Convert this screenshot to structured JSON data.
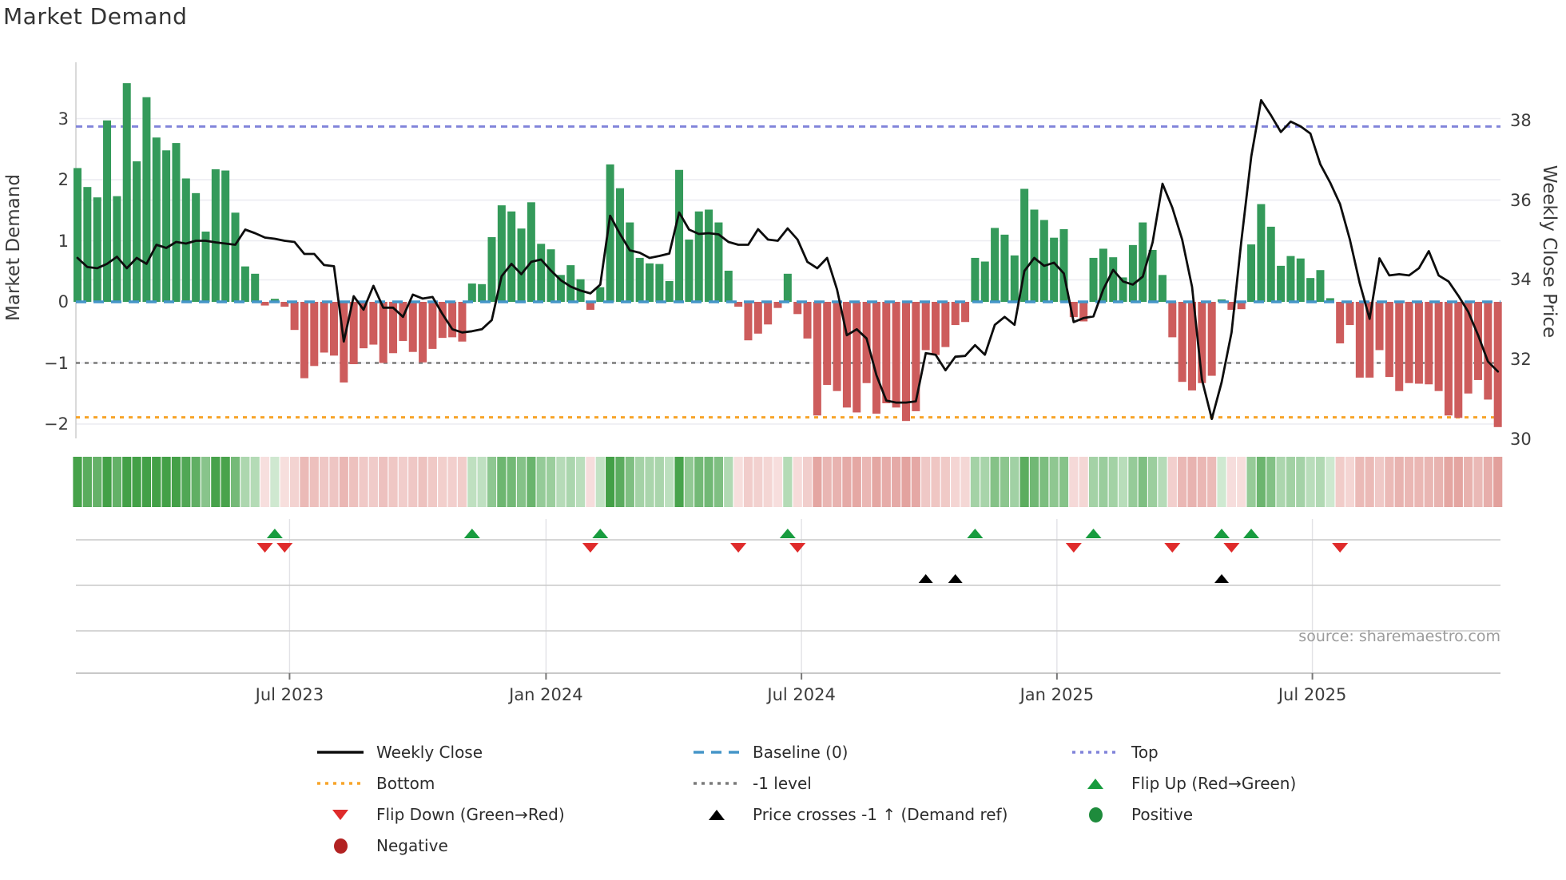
{
  "title": "Market Demand",
  "source": "source: sharemaestro.com",
  "axes": {
    "left": {
      "label": "Market Demand",
      "ticks": [
        {
          "v": 3,
          "label": "3"
        },
        {
          "v": 2,
          "label": "2"
        },
        {
          "v": 1,
          "label": "1"
        },
        {
          "v": 0,
          "label": "0"
        },
        {
          "v": -1,
          "label": "−1"
        },
        {
          "v": -2,
          "label": "−2"
        }
      ]
    },
    "right": {
      "label": "Weekly Close Price",
      "ticks": [
        {
          "v": 38,
          "label": "38"
        },
        {
          "v": 36,
          "label": "36"
        },
        {
          "v": 34,
          "label": "34"
        },
        {
          "v": 32,
          "label": "32"
        },
        {
          "v": 30,
          "label": "30"
        }
      ]
    },
    "x": {
      "ticks": [
        {
          "label": "Jul 2023",
          "week": 21.5
        },
        {
          "label": "Jan 2024",
          "week": 47.5
        },
        {
          "label": "Jul 2024",
          "week": 73.4
        },
        {
          "label": "Jan 2025",
          "week": 99.3
        },
        {
          "label": "Jul 2025",
          "week": 125.2
        }
      ]
    }
  },
  "colors": {
    "bar_positive": "#349a5a",
    "bar_negative": "#cd5c5c",
    "price_line": "#0d0d0d",
    "baseline": "#4595c8",
    "top_line": "#8184da",
    "bottom_line": "#f7a429",
    "minus_one_line": "#7a7a7a",
    "flip_up": "#189c3f",
    "flip_down": "#df2b2b",
    "price_cross": "#000000",
    "positive_dot": "#1e8b3c",
    "negative_dot": "#b22222",
    "grid": "#ececf1",
    "spine": "#d0d0d0",
    "panel_line": "#c9c9c9",
    "panel_grid": "#e2e2e6",
    "axis_line": "#b5b5b5"
  },
  "chart_data": {
    "type": "combo",
    "description": "Weekly Market Demand bars (left axis) with Weekly Close price line (right axis), heat strip and flip/cross marker rows",
    "start_date": "2023-01-30",
    "frequency": "weekly",
    "demand_ylim": [
      -2.35,
      3.95
    ],
    "price_ylim": [
      29.9,
      38.9
    ],
    "top_level": 2.87,
    "bottom_level": -1.89,
    "minus_one_level": -1,
    "baseline_level": 0,
    "demand": [
      2.19,
      1.88,
      1.71,
      2.97,
      1.73,
      3.58,
      2.3,
      3.35,
      2.69,
      2.48,
      2.6,
      2.02,
      1.78,
      1.15,
      2.17,
      2.15,
      1.46,
      0.58,
      0.46,
      -0.06,
      0.05,
      -0.08,
      -0.46,
      -1.25,
      -1.05,
      -0.83,
      -0.88,
      -1.32,
      -1.02,
      -0.76,
      -0.7,
      -1.0,
      -0.84,
      -0.64,
      -0.82,
      -0.99,
      -0.77,
      -0.59,
      -0.58,
      -0.65,
      0.3,
      0.29,
      1.06,
      1.58,
      1.48,
      1.2,
      1.63,
      0.95,
      0.86,
      0.44,
      0.6,
      0.37,
      -0.13,
      0.24,
      2.25,
      1.86,
      1.3,
      0.72,
      0.63,
      0.62,
      0.34,
      2.16,
      1.02,
      1.48,
      1.51,
      1.3,
      0.51,
      -0.08,
      -0.63,
      -0.52,
      -0.37,
      -0.1,
      0.46,
      -0.2,
      -0.6,
      -1.86,
      -1.36,
      -1.46,
      -1.73,
      -1.81,
      -1.33,
      -1.83,
      -1.66,
      -1.73,
      -1.95,
      -1.79,
      -0.79,
      -0.87,
      -0.74,
      -0.38,
      -0.33,
      0.72,
      0.66,
      1.21,
      1.1,
      0.76,
      1.85,
      1.51,
      1.34,
      1.05,
      1.19,
      -0.25,
      -0.32,
      0.72,
      0.87,
      0.73,
      0.4,
      0.93,
      1.3,
      0.85,
      0.44,
      -0.58,
      -1.31,
      -1.45,
      -1.33,
      -1.21,
      0.04,
      -0.13,
      -0.12,
      0.94,
      1.6,
      1.23,
      0.59,
      0.75,
      0.71,
      0.39,
      0.52,
      0.06,
      -0.68,
      -0.38,
      -1.24,
      -1.24,
      -0.79,
      -1.23,
      -1.46,
      -1.33,
      -1.34,
      -1.35,
      -1.46,
      -1.86,
      -1.9,
      -1.5,
      -1.28,
      -1.6,
      -2.05
    ],
    "price": [
      34.55,
      34.32,
      34.29,
      34.4,
      34.58,
      34.29,
      34.55,
      34.4,
      34.88,
      34.8,
      34.95,
      34.91,
      34.98,
      34.98,
      34.94,
      34.91,
      34.88,
      35.26,
      35.17,
      35.06,
      35.03,
      34.98,
      34.95,
      34.65,
      34.65,
      34.37,
      34.34,
      32.45,
      33.59,
      33.25,
      33.85,
      33.3,
      33.3,
      33.07,
      33.63,
      33.53,
      33.57,
      33.14,
      32.76,
      32.68,
      32.71,
      32.76,
      32.99,
      34.09,
      34.4,
      34.14,
      34.45,
      34.51,
      34.23,
      33.99,
      33.83,
      33.73,
      33.66,
      33.88,
      35.61,
      35.15,
      34.74,
      34.68,
      34.55,
      34.6,
      34.66,
      35.69,
      35.26,
      35.15,
      35.17,
      35.14,
      34.95,
      34.88,
      34.88,
      35.27,
      35.01,
      34.98,
      35.29,
      35.01,
      34.45,
      34.29,
      34.55,
      33.76,
      32.61,
      32.76,
      32.53,
      31.61,
      30.97,
      30.92,
      30.92,
      30.95,
      32.16,
      32.12,
      31.73,
      32.07,
      32.09,
      32.36,
      32.12,
      32.87,
      33.07,
      32.87,
      34.22,
      34.55,
      34.35,
      34.43,
      34.16,
      32.94,
      33.04,
      33.08,
      33.76,
      34.25,
      33.96,
      33.88,
      34.08,
      34.94,
      36.41,
      35.81,
      35.01,
      33.82,
      31.5,
      30.51,
      31.43,
      32.68,
      34.98,
      37.1,
      38.51,
      38.13,
      37.71,
      37.97,
      37.85,
      37.67,
      36.9,
      36.44,
      35.9,
      35.01,
      33.91,
      33.02,
      34.54,
      34.11,
      34.14,
      34.11,
      34.29,
      34.72,
      34.11,
      33.96,
      33.6,
      33.2,
      32.61,
      31.95,
      31.7
    ],
    "markers": {
      "flip_up_weeks": [
        20,
        40,
        53,
        72,
        91,
        103,
        116,
        119
      ],
      "flip_down_weeks": [
        19,
        21,
        52,
        67,
        73,
        101,
        111,
        117,
        128
      ],
      "price_cross_weeks": [
        86,
        89,
        116
      ]
    }
  },
  "legend": {
    "items": [
      {
        "label": "Weekly Close",
        "type": "line",
        "colorKey": "price_line",
        "row": 0,
        "col": 0
      },
      {
        "label": "Baseline (0)",
        "type": "dash",
        "colorKey": "baseline",
        "row": 0,
        "col": 1
      },
      {
        "label": "Top",
        "type": "dots",
        "colorKey": "top_line",
        "row": 0,
        "col": 2
      },
      {
        "label": "Bottom",
        "type": "dots",
        "colorKey": "bottom_line",
        "row": 1,
        "col": 0
      },
      {
        "label": "-1 level",
        "type": "dots",
        "colorKey": "minus_one_line",
        "row": 1,
        "col": 1
      },
      {
        "label": "Flip Up (Red→Green)",
        "type": "tri-up",
        "colorKey": "flip_up",
        "row": 1,
        "col": 2
      },
      {
        "label": "Flip Down (Green→Red)",
        "type": "tri-down",
        "colorKey": "flip_down",
        "row": 2,
        "col": 0
      },
      {
        "label": "Price crosses -1 ↑ (Demand ref)",
        "type": "tri-up",
        "colorKey": "price_cross",
        "row": 2,
        "col": 1
      },
      {
        "label": "Positive",
        "type": "circle",
        "colorKey": "positive_dot",
        "row": 2,
        "col": 2
      },
      {
        "label": "Negative",
        "type": "circle",
        "colorKey": "negative_dot",
        "row": 3,
        "col": 0
      }
    ]
  }
}
